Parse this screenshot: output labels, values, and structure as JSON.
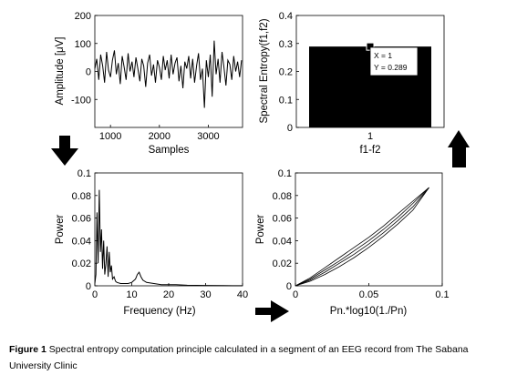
{
  "chart_data": [
    {
      "type": "line",
      "xlabel": "Samples",
      "ylabel": "Amplitude [μV]",
      "xlim": [
        680,
        3700
      ],
      "ylim": [
        -200,
        200
      ],
      "xticks": [
        1000,
        2000,
        3000
      ],
      "yticks": [
        -100,
        0,
        100,
        200
      ],
      "series_description_source": "EEG trace",
      "x": [
        680,
        720,
        760,
        800,
        840,
        880,
        920,
        960,
        1000,
        1040,
        1080,
        1120,
        1160,
        1200,
        1240,
        1280,
        1320,
        1360,
        1400,
        1440,
        1480,
        1520,
        1560,
        1600,
        1640,
        1680,
        1720,
        1760,
        1800,
        1840,
        1880,
        1920,
        1960,
        2000,
        2040,
        2080,
        2120,
        2160,
        2200,
        2240,
        2280,
        2320,
        2360,
        2400,
        2440,
        2480,
        2520,
        2560,
        2600,
        2640,
        2680,
        2720,
        2760,
        2800,
        2840,
        2880,
        2920,
        2960,
        3000,
        3040,
        3080,
        3120,
        3160,
        3200,
        3240,
        3280,
        3320,
        3360,
        3400,
        3440,
        3480,
        3520,
        3560,
        3600,
        3640,
        3680
      ],
      "y": [
        10,
        45,
        -30,
        60,
        20,
        -40,
        70,
        5,
        -20,
        40,
        75,
        -10,
        30,
        -45,
        55,
        15,
        -30,
        65,
        0,
        35,
        -20,
        50,
        10,
        -35,
        45,
        20,
        -55,
        30,
        60,
        -15,
        25,
        -40,
        40,
        15,
        -30,
        55,
        5,
        40,
        -25,
        60,
        -10,
        30,
        50,
        -35,
        20,
        -60,
        35,
        10,
        55,
        -25,
        45,
        -40,
        20,
        65,
        -30,
        10,
        -130,
        40,
        -20,
        60,
        -90,
        110,
        -10,
        45,
        -40,
        70,
        15,
        -50,
        40,
        25,
        -30,
        55,
        0,
        35,
        -20,
        40
      ]
    },
    {
      "type": "bar",
      "xlabel": "f1-f2",
      "ylabel": "Spectral Entropy(f1,f2)",
      "categories": [
        "1"
      ],
      "values": [
        0.289
      ],
      "ylim": [
        0,
        0.4
      ],
      "yticks": [
        0,
        0.1,
        0.2,
        0.3,
        0.4
      ],
      "annotation": {
        "x_text": "X = 1",
        "y_text": "Y = 0.289"
      }
    },
    {
      "type": "line",
      "xlabel": "Frequency (Hz)",
      "ylabel": "Power",
      "xlim": [
        0,
        40
      ],
      "ylim": [
        0,
        0.1
      ],
      "xticks": [
        0,
        10,
        20,
        30,
        40
      ],
      "yticks": [
        0,
        0.02,
        0.04,
        0.06,
        0.08,
        0.1
      ],
      "x": [
        0,
        0.3,
        0.6,
        0.9,
        1.2,
        1.5,
        1.8,
        2.1,
        2.4,
        2.7,
        3.0,
        3.3,
        3.6,
        3.9,
        4.2,
        4.5,
        4.8,
        5.2,
        5.6,
        6,
        7,
        8,
        9,
        10,
        11,
        11.5,
        12,
        12.5,
        13,
        14,
        16,
        18,
        20,
        22,
        25,
        30,
        35,
        40
      ],
      "y": [
        0.002,
        0.01,
        0.065,
        0.02,
        0.085,
        0.03,
        0.05,
        0.015,
        0.04,
        0.01,
        0.02,
        0.035,
        0.008,
        0.03,
        0.012,
        0.018,
        0.006,
        0.008,
        0.004,
        0.003,
        0.002,
        0.002,
        0.002,
        0.003,
        0.006,
        0.01,
        0.012,
        0.008,
        0.005,
        0.003,
        0.002,
        0.001,
        0.001,
        0.001,
        0.0005,
        0.0003,
        0.0002,
        0.0001
      ]
    },
    {
      "type": "line",
      "xlabel": "Pn.*log10(1./Pn)",
      "ylabel": "Power",
      "xlim": [
        0,
        0.1
      ],
      "ylim": [
        0,
        0.1
      ],
      "xticks": [
        0,
        0.05,
        0.1
      ],
      "yticks": [
        0,
        0.02,
        0.04,
        0.06,
        0.08,
        0.1
      ],
      "series": [
        {
          "x": [
            0,
            0.01,
            0.02,
            0.03,
            0.04,
            0.05,
            0.06,
            0.07,
            0.08,
            0.091
          ],
          "y": [
            0,
            0.004,
            0.01,
            0.017,
            0.025,
            0.034,
            0.044,
            0.055,
            0.067,
            0.087
          ]
        },
        {
          "x": [
            0,
            0.01,
            0.02,
            0.03,
            0.04,
            0.05,
            0.06,
            0.07,
            0.08,
            0.091
          ],
          "y": [
            0,
            0.005,
            0.012,
            0.02,
            0.028,
            0.037,
            0.047,
            0.058,
            0.07,
            0.087
          ]
        },
        {
          "x": [
            0,
            0.01,
            0.02,
            0.03,
            0.04,
            0.05,
            0.06,
            0.07,
            0.08,
            0.091
          ],
          "y": [
            0,
            0.006,
            0.014,
            0.022,
            0.031,
            0.04,
            0.05,
            0.061,
            0.073,
            0.087
          ]
        },
        {
          "x": [
            0,
            0.01,
            0.02,
            0.03,
            0.04,
            0.05,
            0.06,
            0.07,
            0.08,
            0.091
          ],
          "y": [
            0,
            0.007,
            0.016,
            0.025,
            0.034,
            0.043,
            0.053,
            0.064,
            0.075,
            0.087
          ]
        }
      ]
    }
  ],
  "caption": {
    "label": "Figure 1",
    "text": "Spectral entropy computation principle calculated in a segment of an EEG record from The Sabana University Clinic"
  }
}
